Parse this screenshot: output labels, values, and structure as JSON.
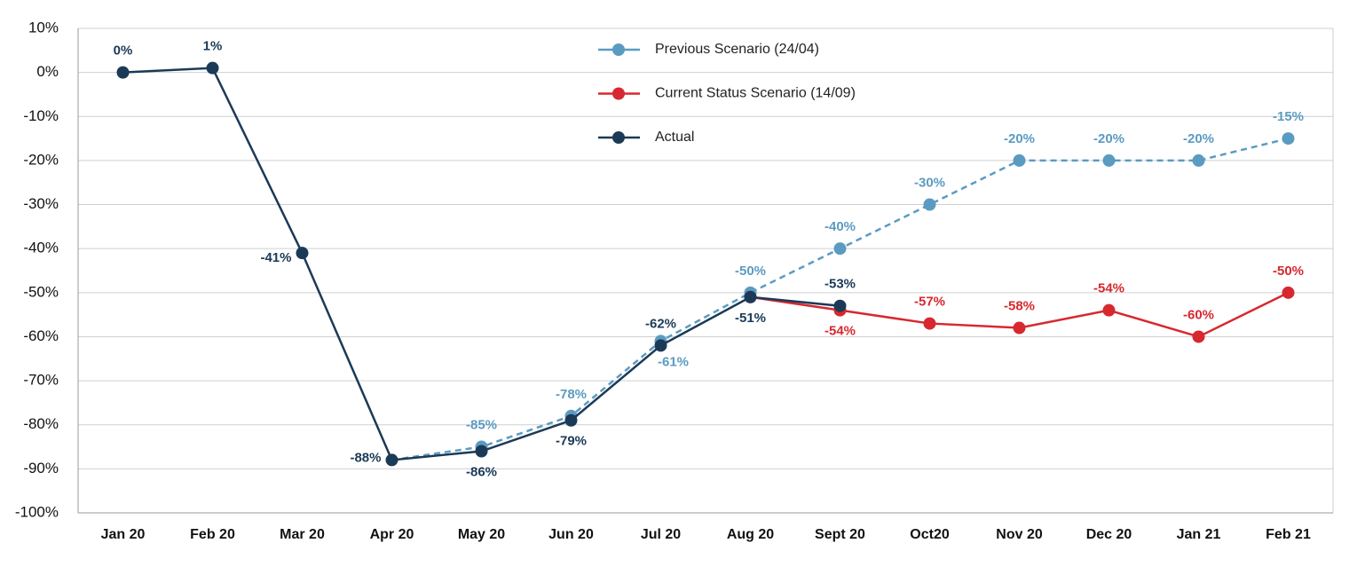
{
  "chart_data": {
    "type": "line",
    "categories": [
      "Jan 20",
      "Feb 20",
      "Mar 20",
      "Apr 20",
      "May 20",
      "Jun 20",
      "Jul 20",
      "Aug 20",
      "Sept 20",
      "Oct20",
      "Nov 20",
      "Dec 20",
      "Jan 21",
      "Feb 21"
    ],
    "series": [
      {
        "name": "Previous Scenario (24/04)",
        "color": "#5b9bc1",
        "dashed": true,
        "values": [
          null,
          null,
          null,
          -88,
          -85,
          -78,
          -61,
          -50,
          -40,
          -30,
          -20,
          -20,
          -20,
          -15
        ],
        "value_labels": [
          null,
          null,
          null,
          null,
          "-85%",
          "-78%",
          "-61%",
          "-50%",
          "-40%",
          "-30%",
          "-20%",
          "-20%",
          "-20%",
          "-15%"
        ]
      },
      {
        "name": "Current Status Scenario (14/09)",
        "color": "#d7282f",
        "dashed": false,
        "values": [
          null,
          null,
          null,
          null,
          null,
          null,
          null,
          -51,
          -54,
          -57,
          -58,
          -54,
          -60,
          -50
        ],
        "value_labels": [
          null,
          null,
          null,
          null,
          null,
          null,
          null,
          null,
          "-54%",
          "-57%",
          "-58%",
          "-54%",
          "-60%",
          "-50%"
        ]
      },
      {
        "name": "Actual",
        "color": "#1b3a57",
        "dashed": false,
        "values": [
          0,
          1,
          -41,
          -88,
          -86,
          -79,
          -62,
          -51,
          -53,
          null,
          null,
          null,
          null,
          null
        ],
        "value_labels": [
          "0%",
          "1%",
          "-41%",
          "-88%",
          "-86%",
          "-79%",
          "-62%",
          "-51%",
          "-53%",
          null,
          null,
          null,
          null,
          null
        ]
      }
    ],
    "ylim": [
      -100,
      10
    ],
    "yticks": [
      {
        "value": -100,
        "label": "-100%"
      },
      {
        "value": -90,
        "label": "-90%"
      },
      {
        "value": -80,
        "label": "-80%"
      },
      {
        "value": -70,
        "label": "-70%"
      },
      {
        "value": -60,
        "label": "-60%"
      },
      {
        "value": -50,
        "label": "-50%"
      },
      {
        "value": -40,
        "label": "-40%"
      },
      {
        "value": -30,
        "label": "-30%"
      },
      {
        "value": -20,
        "label": "-20%"
      },
      {
        "value": -10,
        "label": "-10%"
      },
      {
        "value": 0,
        "label": "0%"
      },
      {
        "value": 10,
        "label": "10%"
      }
    ],
    "grid": true,
    "legend": "top"
  }
}
